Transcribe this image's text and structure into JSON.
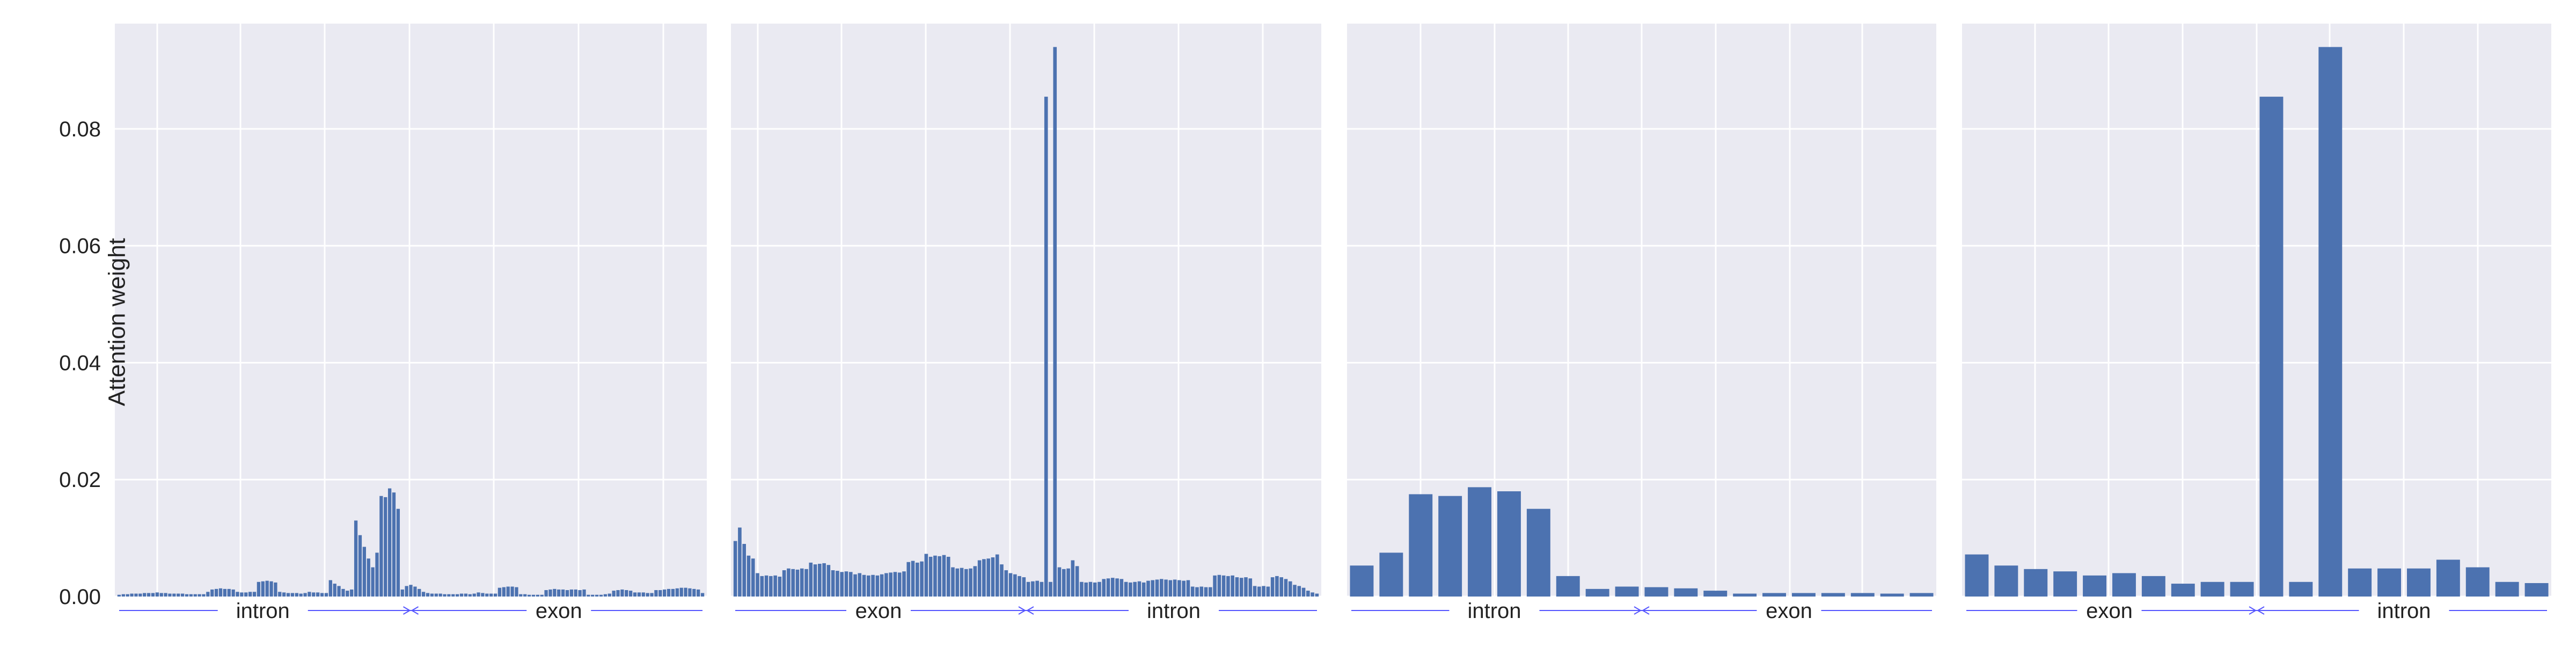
{
  "figure": {
    "ylabel": "Attention weight",
    "yticks": [
      "0.00",
      "0.02",
      "0.04",
      "0.06",
      "0.08"
    ],
    "colors": {
      "bar": "#4c72b0",
      "panel_bg": "#eaeaf2",
      "grid": "#ffffff",
      "region_line": "#5555ff"
    }
  },
  "chart_data": [
    {
      "type": "bar",
      "ylim": [
        0,
        0.098
      ],
      "grid": true,
      "regions": [
        "intron",
        "exon"
      ],
      "values": [
        0.0003,
        0.0004,
        0.0004,
        0.0005,
        0.0005,
        0.0005,
        0.0006,
        0.0006,
        0.0006,
        0.0007,
        0.0006,
        0.0006,
        0.0005,
        0.0005,
        0.0005,
        0.0005,
        0.0004,
        0.0004,
        0.0004,
        0.0004,
        0.0004,
        0.0008,
        0.0012,
        0.0013,
        0.0014,
        0.0013,
        0.0013,
        0.0012,
        0.0008,
        0.0007,
        0.0007,
        0.0008,
        0.0008,
        0.0025,
        0.0026,
        0.0027,
        0.0026,
        0.0024,
        0.0008,
        0.0007,
        0.0006,
        0.0006,
        0.0006,
        0.0005,
        0.0006,
        0.0008,
        0.0007,
        0.0007,
        0.0006,
        0.0006,
        0.0028,
        0.0022,
        0.0018,
        0.0013,
        0.001,
        0.0012,
        0.013,
        0.0105,
        0.0085,
        0.0065,
        0.005,
        0.0075,
        0.0172,
        0.017,
        0.0185,
        0.0178,
        0.015,
        0.0012,
        0.0018,
        0.002,
        0.0017,
        0.0013,
        0.0008,
        0.0006,
        0.0005,
        0.0005,
        0.0005,
        0.0004,
        0.0004,
        0.0004,
        0.0004,
        0.0005,
        0.0005,
        0.0004,
        0.0005,
        0.0007,
        0.0006,
        0.0005,
        0.0005,
        0.0005,
        0.0015,
        0.0016,
        0.0017,
        0.0017,
        0.0016,
        0.0004,
        0.0004,
        0.0003,
        0.0003,
        0.0003,
        0.0003,
        0.0011,
        0.0012,
        0.0013,
        0.0012,
        0.0012,
        0.0011,
        0.0012,
        0.0012,
        0.0011,
        0.0012,
        0.0003,
        0.0003,
        0.0003,
        0.0003,
        0.0004,
        0.0005,
        0.001,
        0.0011,
        0.0012,
        0.0011,
        0.001,
        0.0007,
        0.0007,
        0.0007,
        0.0006,
        0.0006,
        0.0011,
        0.0011,
        0.0012,
        0.0013,
        0.0013,
        0.0014,
        0.0015,
        0.0015,
        0.0014,
        0.0013,
        0.0012,
        0.0006
      ]
    },
    {
      "type": "bar",
      "ylim": [
        0,
        0.098
      ],
      "grid": true,
      "regions": [
        "exon",
        "intron"
      ],
      "values": [
        0.0095,
        0.0118,
        0.009,
        0.007,
        0.0065,
        0.004,
        0.0035,
        0.0036,
        0.0035,
        0.0036,
        0.0034,
        0.0045,
        0.0048,
        0.0047,
        0.0046,
        0.0048,
        0.0047,
        0.0058,
        0.0055,
        0.0056,
        0.0057,
        0.0054,
        0.0045,
        0.0044,
        0.0042,
        0.0043,
        0.0042,
        0.0038,
        0.004,
        0.0037,
        0.0036,
        0.0037,
        0.0036,
        0.0038,
        0.004,
        0.0041,
        0.0042,
        0.0041,
        0.0043,
        0.0059,
        0.0061,
        0.0058,
        0.006,
        0.0073,
        0.0068,
        0.007,
        0.0069,
        0.0071,
        0.0068,
        0.005,
        0.0048,
        0.0049,
        0.0047,
        0.0048,
        0.0052,
        0.0062,
        0.0064,
        0.0065,
        0.0067,
        0.0072,
        0.0055,
        0.0045,
        0.004,
        0.0038,
        0.0035,
        0.0033,
        0.0025,
        0.0026,
        0.0027,
        0.0025,
        0.0855,
        0.0025,
        0.094,
        0.005,
        0.0047,
        0.0048,
        0.0062,
        0.0052,
        0.0025,
        0.0024,
        0.0025,
        0.0024,
        0.0025,
        0.003,
        0.0031,
        0.0032,
        0.0031,
        0.003,
        0.0025,
        0.0024,
        0.0025,
        0.0026,
        0.0024,
        0.0027,
        0.0028,
        0.0029,
        0.003,
        0.0029,
        0.0028,
        0.0029,
        0.0028,
        0.0027,
        0.0028,
        0.0017,
        0.0016,
        0.0017,
        0.0016,
        0.0016,
        0.0036,
        0.0037,
        0.0036,
        0.0035,
        0.0036,
        0.0033,
        0.0032,
        0.0033,
        0.0031,
        0.0018,
        0.0017,
        0.0018,
        0.0017,
        0.0033,
        0.0035,
        0.0033,
        0.003,
        0.0026,
        0.002,
        0.0018,
        0.0015,
        0.001,
        0.0007,
        0.0005
      ]
    },
    {
      "type": "bar",
      "ylim": [
        0,
        0.098
      ],
      "grid": true,
      "regions": [
        "intron",
        "exon"
      ],
      "values": [
        0.0053,
        0.0075,
        0.0175,
        0.0172,
        0.0187,
        0.018,
        0.015,
        0.0035,
        0.0013,
        0.0017,
        0.0016,
        0.0014,
        0.001,
        0.0005,
        0.0006,
        0.0006,
        0.0006,
        0.0006,
        0.0005,
        0.0006
      ]
    },
    {
      "type": "bar",
      "ylim": [
        0,
        0.098
      ],
      "grid": true,
      "regions": [
        "exon",
        "intron"
      ],
      "values": [
        0.0072,
        0.0053,
        0.0047,
        0.0043,
        0.0036,
        0.004,
        0.0035,
        0.0022,
        0.0025,
        0.0025,
        0.0855,
        0.0025,
        0.094,
        0.0048,
        0.0048,
        0.0048,
        0.0063,
        0.005,
        0.0025,
        0.0023
      ]
    }
  ]
}
